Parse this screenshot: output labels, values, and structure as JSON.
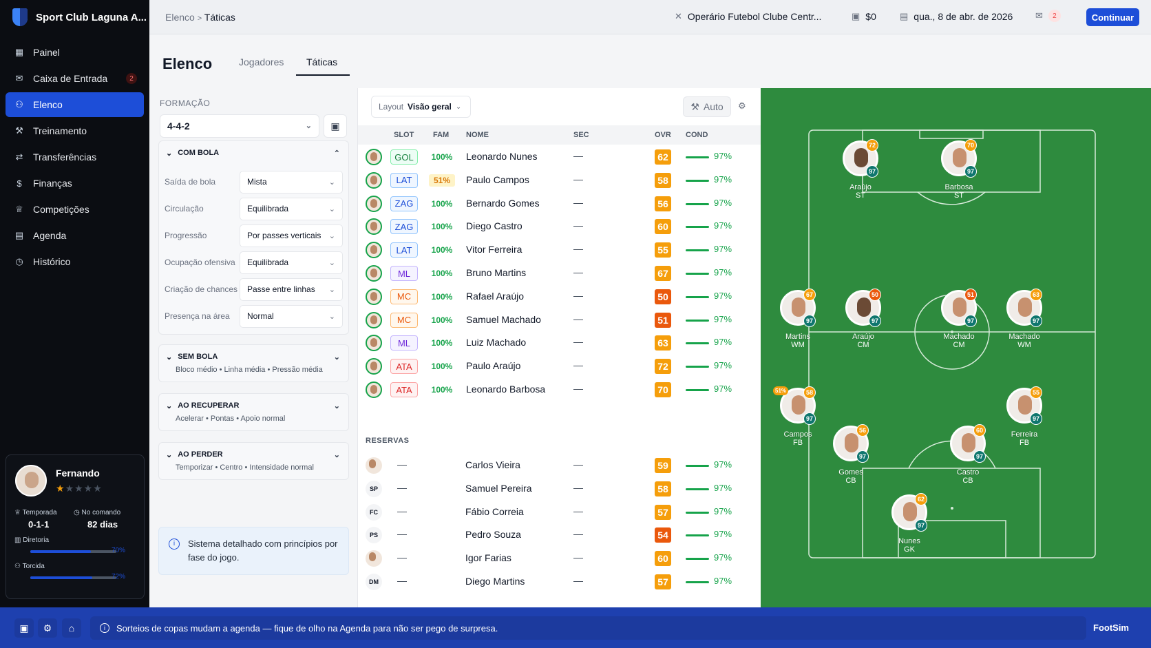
{
  "app": {
    "club_name": "Sport Club Laguna A...",
    "version_brand": "FootSim"
  },
  "nav": [
    {
      "label": "Painel",
      "icon": "grid-icon"
    },
    {
      "label": "Caixa de Entrada",
      "icon": "mail-icon",
      "badge": "2"
    },
    {
      "label": "Elenco",
      "icon": "users-icon",
      "active": true
    },
    {
      "label": "Treinamento",
      "icon": "dumbbell-icon"
    },
    {
      "label": "Transferências",
      "icon": "transfer-icon"
    },
    {
      "label": "Finanças",
      "icon": "dollar-icon"
    },
    {
      "label": "Competições",
      "icon": "trophy-icon"
    },
    {
      "label": "Agenda",
      "icon": "calendar-icon"
    },
    {
      "label": "Histórico",
      "icon": "clock-icon"
    }
  ],
  "manager": {
    "name": "Fernando",
    "stars": "★",
    "stars_empty": "★★★★",
    "season_label": "Temporada",
    "season_value": "0-1-1",
    "command_label": "No comando",
    "command_value": "82 dias",
    "board_label": "Diretoria",
    "board_pct": "70%",
    "board_value": 0.7,
    "fans_label": "Torcida",
    "fans_pct": "72%",
    "fans_value": 0.72
  },
  "topbar": {
    "crumb_parent": "Elenco",
    "crumb_sep": ">",
    "crumb_current": "Táticas",
    "next_opponent": "Operário Futebol Clube Centr...",
    "money": "$0",
    "date": "qua., 8 de abr. de 2026",
    "mail_count": "2",
    "continue_label": "Continuar"
  },
  "page": {
    "title": "Elenco",
    "tabs": [
      "Jogadores",
      "Táticas"
    ],
    "active_tab": "Táticas"
  },
  "tactics": {
    "formation_label": "FORMAÇÃO",
    "formation_value": "4-4-2",
    "com_bola": {
      "title": "COM BOLA",
      "rows": [
        {
          "label": "Saída de bola",
          "value": "Mista"
        },
        {
          "label": "Circulação",
          "value": "Equilibrada"
        },
        {
          "label": "Progressão",
          "value": "Por passes verticais"
        },
        {
          "label": "Ocupação ofensiva",
          "value": "Equilibrada"
        },
        {
          "label": "Criação de chances",
          "value": "Passe entre linhas"
        },
        {
          "label": "Presença na área",
          "value": "Normal"
        }
      ]
    },
    "sem_bola": {
      "title": "SEM BOLA",
      "summary": "Bloco médio • Linha média • Pressão média"
    },
    "ao_recuperar": {
      "title": "AO RECUPERAR",
      "summary": "Acelerar • Pontas • Apoio normal"
    },
    "ao_perder": {
      "title": "AO PERDER",
      "summary": "Temporizar • Centro • Intensidade normal"
    },
    "info": "Sistema detalhado com princípios por fase do jogo."
  },
  "table": {
    "layout_label": "Layout",
    "layout_value": "Visão geral",
    "auto_label": "Auto",
    "headers": {
      "slot": "SLOT",
      "fam": "FAM",
      "name": "NOME",
      "sec": "SEC",
      "ovr": "OVR",
      "cond": "COND"
    },
    "starters": [
      {
        "slot": "GOL",
        "fam": "100%",
        "name": "Leonardo Nunes",
        "sec": "—",
        "ovr": "62",
        "cond": "97%"
      },
      {
        "slot": "LAT",
        "fam": "51%",
        "name": "Paulo Campos",
        "sec": "—",
        "ovr": "58",
        "cond": "97%"
      },
      {
        "slot": "ZAG",
        "fam": "100%",
        "name": "Bernardo Gomes",
        "sec": "—",
        "ovr": "56",
        "cond": "97%"
      },
      {
        "slot": "ZAG",
        "fam": "100%",
        "name": "Diego Castro",
        "sec": "—",
        "ovr": "60",
        "cond": "97%"
      },
      {
        "slot": "LAT",
        "fam": "100%",
        "name": "Vitor Ferreira",
        "sec": "—",
        "ovr": "55",
        "cond": "97%"
      },
      {
        "slot": "ML",
        "fam": "100%",
        "name": "Bruno Martins",
        "sec": "—",
        "ovr": "67",
        "cond": "97%"
      },
      {
        "slot": "MC",
        "fam": "100%",
        "name": "Rafael Araújo",
        "sec": "—",
        "ovr": "50",
        "cond": "97%"
      },
      {
        "slot": "MC",
        "fam": "100%",
        "name": "Samuel Machado",
        "sec": "—",
        "ovr": "51",
        "cond": "97%"
      },
      {
        "slot": "ML",
        "fam": "100%",
        "name": "Luiz Machado",
        "sec": "—",
        "ovr": "63",
        "cond": "97%"
      },
      {
        "slot": "ATA",
        "fam": "100%",
        "name": "Paulo Araújo",
        "sec": "—",
        "ovr": "72",
        "cond": "97%"
      },
      {
        "slot": "ATA",
        "fam": "100%",
        "name": "Leonardo Barbosa",
        "sec": "—",
        "ovr": "70",
        "cond": "97%"
      }
    ],
    "reserves_label": "RESERVAS",
    "reserves": [
      {
        "initials": "",
        "slot": "—",
        "name": "Carlos Vieira",
        "sec": "—",
        "ovr": "59",
        "cond": "97%"
      },
      {
        "initials": "SP",
        "slot": "—",
        "name": "Samuel Pereira",
        "sec": "—",
        "ovr": "58",
        "cond": "97%"
      },
      {
        "initials": "FC",
        "slot": "—",
        "name": "Fábio Correia",
        "sec": "—",
        "ovr": "57",
        "cond": "97%"
      },
      {
        "initials": "PS",
        "slot": "—",
        "name": "Pedro Souza",
        "sec": "—",
        "ovr": "54",
        "cond": "97%"
      },
      {
        "initials": "",
        "slot": "—",
        "name": "Igor Farias",
        "sec": "—",
        "ovr": "60",
        "cond": "97%"
      },
      {
        "initials": "DM",
        "slot": "—",
        "name": "Diego Martins",
        "sec": "—",
        "ovr": "57",
        "cond": "97%"
      }
    ]
  },
  "pitch": [
    {
      "name": "Araújo",
      "pos": "ST",
      "ovr": "72",
      "cond": "97"
    },
    {
      "name": "Barbosa",
      "pos": "ST",
      "ovr": "70",
      "cond": "97"
    },
    {
      "name": "Martins",
      "pos": "WM",
      "ovr": "67",
      "cond": "97"
    },
    {
      "name": "Araújo",
      "pos": "CM",
      "ovr": "50",
      "cond": "97"
    },
    {
      "name": "Machado",
      "pos": "CM",
      "ovr": "51",
      "cond": "97"
    },
    {
      "name": "Machado",
      "pos": "WM",
      "ovr": "63",
      "cond": "97"
    },
    {
      "name": "Campos",
      "pos": "FB",
      "ovr": "58",
      "cond": "97",
      "fam": "51%"
    },
    {
      "name": "Ferreira",
      "pos": "FB",
      "ovr": "55",
      "cond": "97"
    },
    {
      "name": "Gomes",
      "pos": "CB",
      "ovr": "56",
      "cond": "97"
    },
    {
      "name": "Castro",
      "pos": "CB",
      "ovr": "60",
      "cond": "97"
    },
    {
      "name": "Nunes",
      "pos": "GK",
      "ovr": "62",
      "cond": "97"
    }
  ],
  "footer": {
    "tip": "Sorteios de copas mudam a agenda — fique de olho na Agenda para não ser pego de surpresa."
  },
  "colors": {
    "accent": "#1d4ed8",
    "pitch": "#2e8b3e",
    "ovr_high": "#f59e0b",
    "ovr_low": "#ea580c",
    "cond": "#16a34a"
  }
}
